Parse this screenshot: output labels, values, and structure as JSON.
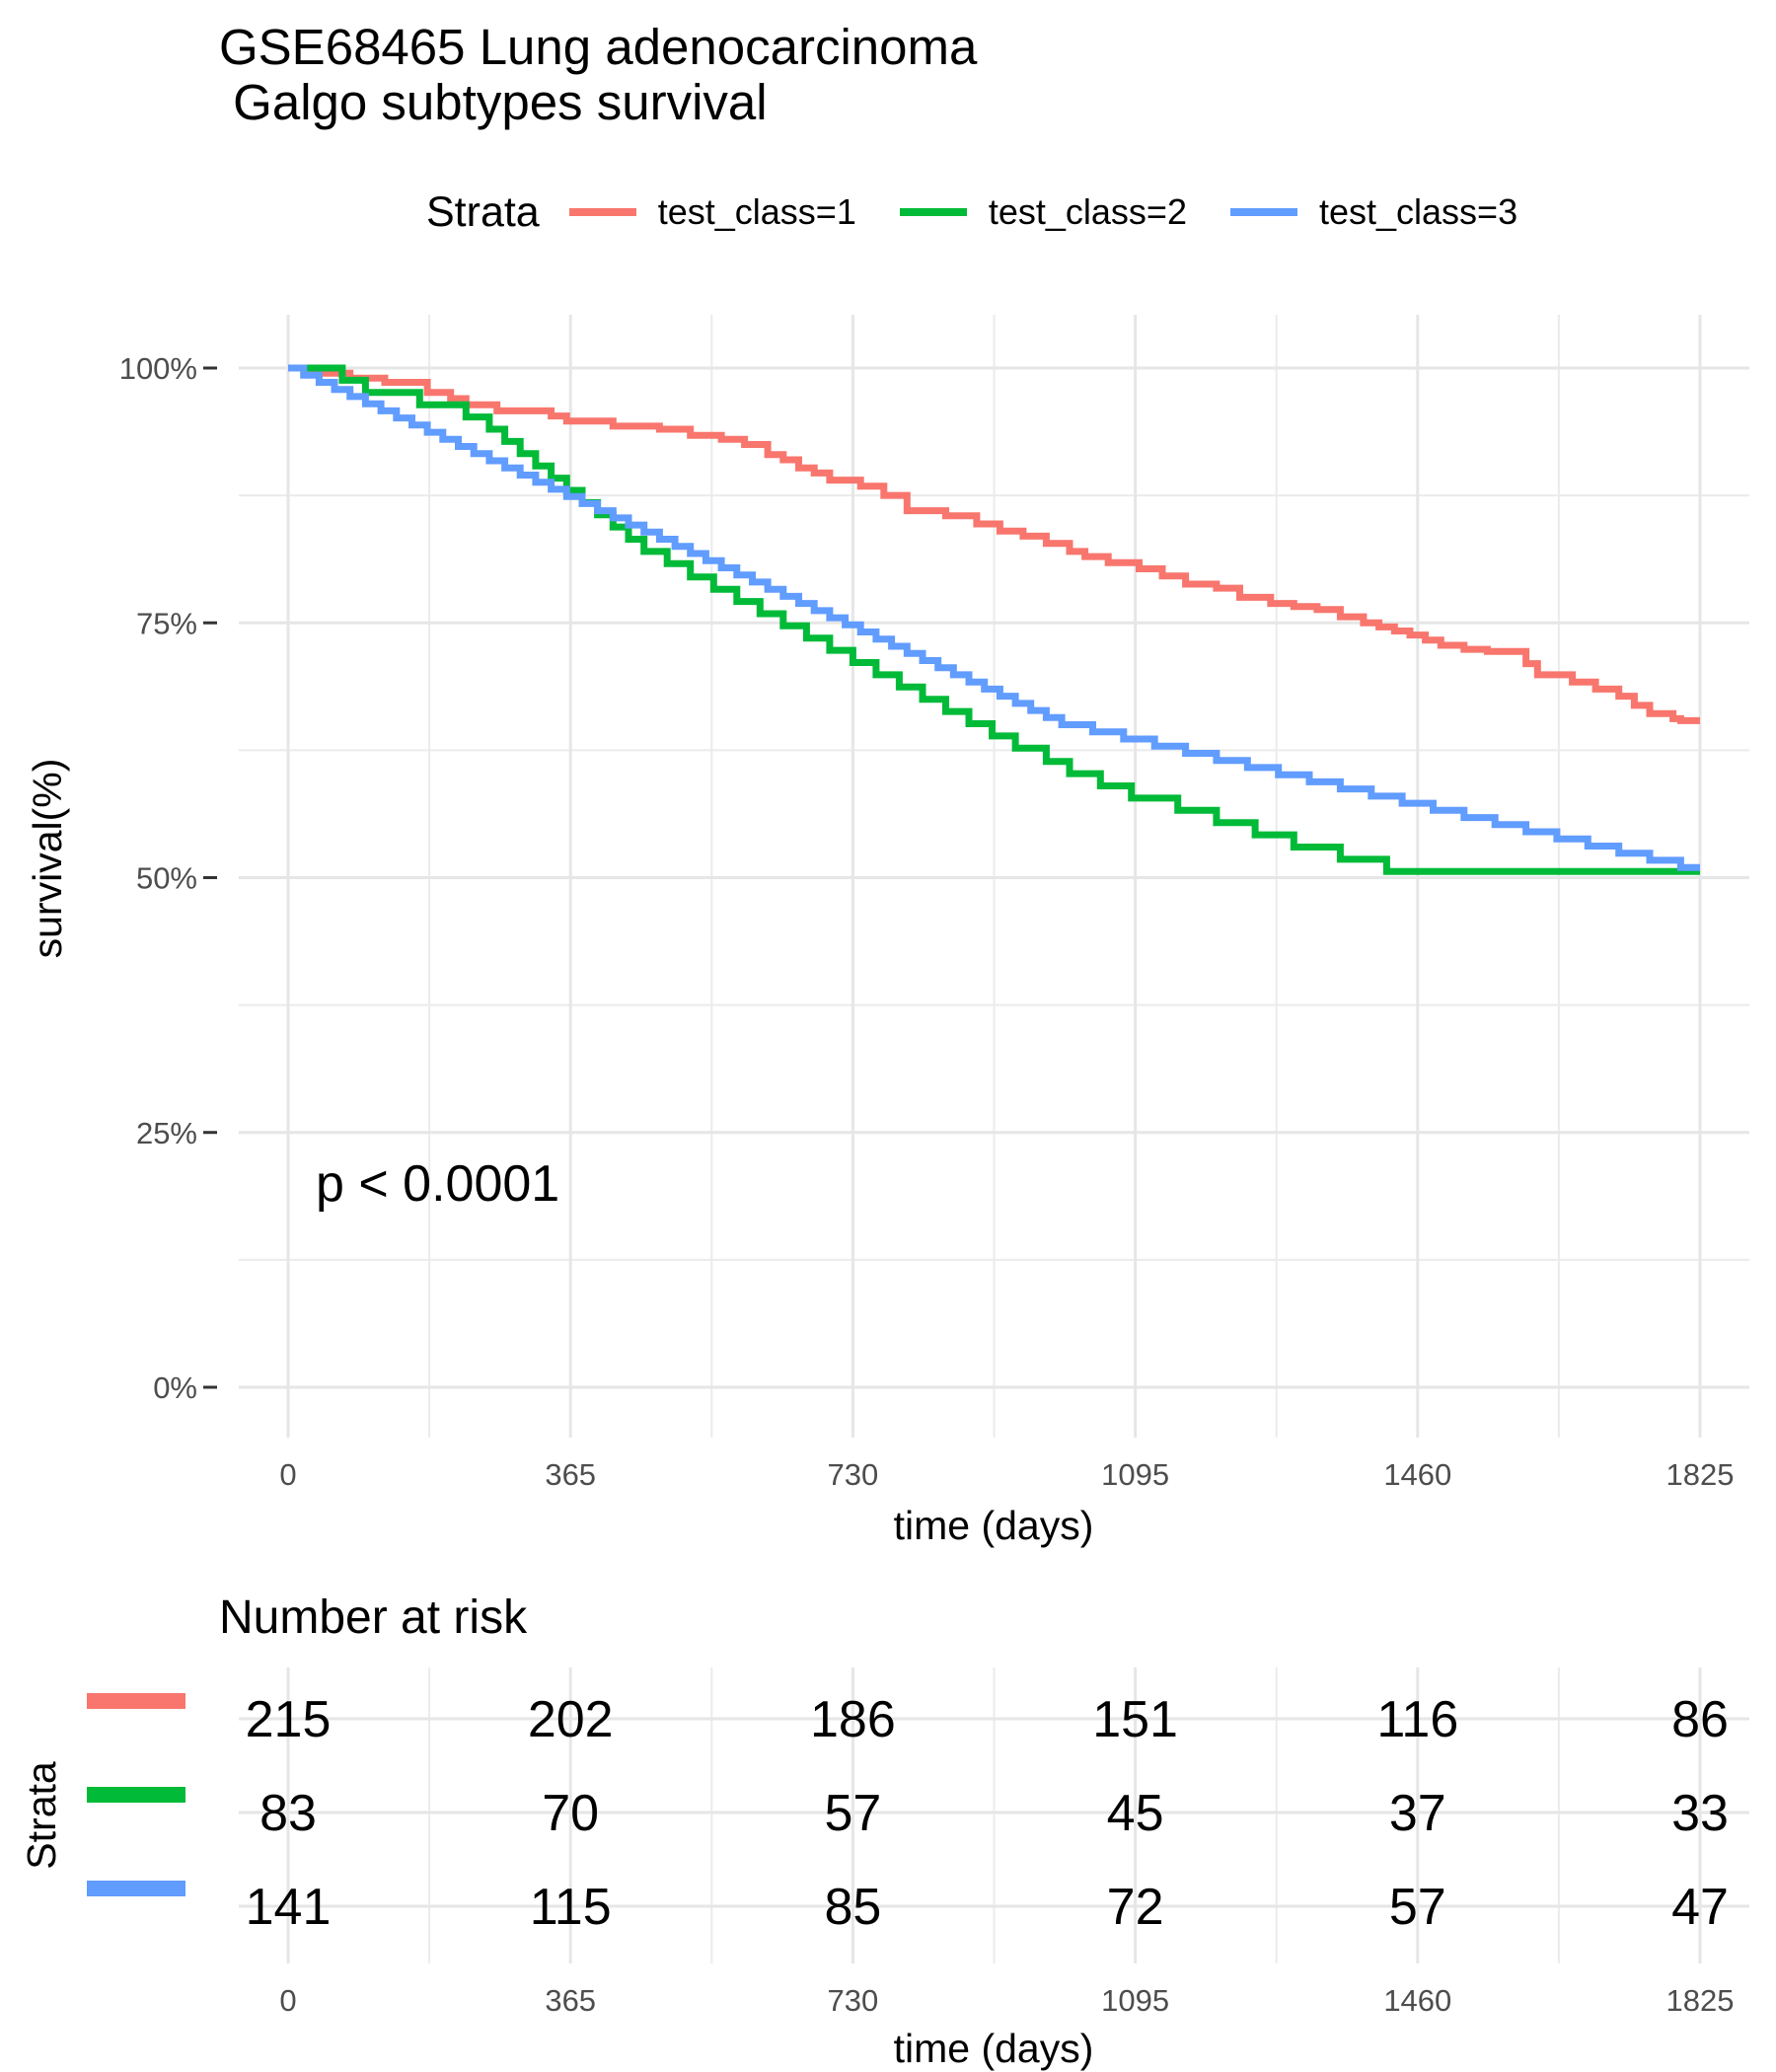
{
  "title": {
    "line1": "GSE68465 Lung adenocarcinoma",
    "line2": " Galgo subtypes survival"
  },
  "legend": {
    "title": "Strata",
    "items": [
      {
        "label": "test_class=1",
        "color": "#F8766D"
      },
      {
        "label": "test_class=2",
        "color": "#00BA38"
      },
      {
        "label": "test_class=3",
        "color": "#619CFF"
      }
    ]
  },
  "p_value_text": "p < 0.0001",
  "chart_data": {
    "type": "line",
    "step": "post",
    "xlabel": "time (days)",
    "ylabel": "survival(%)",
    "x_ticks": [
      0,
      365,
      730,
      1095,
      1460,
      1825
    ],
    "y_ticks": [
      0,
      25,
      50,
      75,
      100
    ],
    "y_tick_labels": [
      "0%",
      "25%",
      "50%",
      "75%",
      "100%"
    ],
    "xlim": [
      0,
      1825
    ],
    "ylim": [
      0,
      100
    ],
    "grid": true,
    "series": [
      {
        "name": "test_class=1",
        "color": "#F8766D",
        "points": [
          [
            0,
            100
          ],
          [
            30,
            99.5
          ],
          [
            80,
            99
          ],
          [
            125,
            98.6
          ],
          [
            180,
            97.6
          ],
          [
            210,
            97
          ],
          [
            230,
            96.4
          ],
          [
            270,
            95.8
          ],
          [
            340,
            95.3
          ],
          [
            360,
            94.8
          ],
          [
            420,
            94.3
          ],
          [
            480,
            94
          ],
          [
            520,
            93.4
          ],
          [
            560,
            93
          ],
          [
            590,
            92.5
          ],
          [
            620,
            91.5
          ],
          [
            640,
            91
          ],
          [
            660,
            90.2
          ],
          [
            680,
            89.7
          ],
          [
            700,
            89
          ],
          [
            740,
            88.4
          ],
          [
            770,
            87.5
          ],
          [
            800,
            86
          ],
          [
            850,
            85.5
          ],
          [
            890,
            84.7
          ],
          [
            920,
            84
          ],
          [
            950,
            83.5
          ],
          [
            980,
            82.8
          ],
          [
            1010,
            82
          ],
          [
            1030,
            81.5
          ],
          [
            1060,
            80.9
          ],
          [
            1100,
            80.3
          ],
          [
            1130,
            79.6
          ],
          [
            1160,
            78.8
          ],
          [
            1200,
            78.4
          ],
          [
            1230,
            77.5
          ],
          [
            1270,
            76.9
          ],
          [
            1300,
            76.6
          ],
          [
            1330,
            76.3
          ],
          [
            1360,
            75.6
          ],
          [
            1390,
            75
          ],
          [
            1410,
            74.6
          ],
          [
            1430,
            74.2
          ],
          [
            1450,
            73.8
          ],
          [
            1470,
            73.3
          ],
          [
            1490,
            72.8
          ],
          [
            1520,
            72.4
          ],
          [
            1550,
            72.2
          ],
          [
            1600,
            71
          ],
          [
            1615,
            69.9
          ],
          [
            1660,
            69.2
          ],
          [
            1690,
            68.5
          ],
          [
            1720,
            67.8
          ],
          [
            1740,
            66.9
          ],
          [
            1760,
            66.1
          ],
          [
            1790,
            65.6
          ],
          [
            1800,
            65.4
          ],
          [
            1825,
            65.4
          ]
        ]
      },
      {
        "name": "test_class=2",
        "color": "#00BA38",
        "points": [
          [
            0,
            100
          ],
          [
            70,
            98.8
          ],
          [
            100,
            97.6
          ],
          [
            170,
            96.4
          ],
          [
            230,
            95.2
          ],
          [
            260,
            94
          ],
          [
            280,
            92.8
          ],
          [
            300,
            91.6
          ],
          [
            320,
            90.4
          ],
          [
            340,
            89.2
          ],
          [
            360,
            88
          ],
          [
            380,
            86.8
          ],
          [
            400,
            85.6
          ],
          [
            420,
            84.4
          ],
          [
            440,
            83.2
          ],
          [
            460,
            82
          ],
          [
            490,
            80.8
          ],
          [
            520,
            79.5
          ],
          [
            550,
            78.3
          ],
          [
            580,
            77.1
          ],
          [
            610,
            75.9
          ],
          [
            640,
            74.7
          ],
          [
            670,
            73.5
          ],
          [
            700,
            72.3
          ],
          [
            730,
            71.1
          ],
          [
            760,
            69.9
          ],
          [
            790,
            68.7
          ],
          [
            820,
            67.5
          ],
          [
            850,
            66.3
          ],
          [
            880,
            65.1
          ],
          [
            910,
            63.9
          ],
          [
            940,
            62.7
          ],
          [
            980,
            61.4
          ],
          [
            1010,
            60.2
          ],
          [
            1050,
            59
          ],
          [
            1090,
            57.8
          ],
          [
            1150,
            56.6
          ],
          [
            1200,
            55.4
          ],
          [
            1250,
            54.2
          ],
          [
            1300,
            53
          ],
          [
            1360,
            51.8
          ],
          [
            1420,
            50.6
          ],
          [
            1825,
            50.6
          ]
        ]
      },
      {
        "name": "test_class=3",
        "color": "#619CFF",
        "points": [
          [
            0,
            100
          ],
          [
            20,
            99.3
          ],
          [
            40,
            98.6
          ],
          [
            60,
            97.9
          ],
          [
            80,
            97.2
          ],
          [
            100,
            96.5
          ],
          [
            120,
            95.8
          ],
          [
            140,
            95.1
          ],
          [
            160,
            94.4
          ],
          [
            180,
            93.7
          ],
          [
            200,
            93
          ],
          [
            220,
            92.3
          ],
          [
            240,
            91.6
          ],
          [
            260,
            90.9
          ],
          [
            280,
            90.2
          ],
          [
            300,
            89.5
          ],
          [
            320,
            88.8
          ],
          [
            340,
            88.1
          ],
          [
            360,
            87.4
          ],
          [
            380,
            86.7
          ],
          [
            400,
            86
          ],
          [
            420,
            85.3
          ],
          [
            440,
            84.6
          ],
          [
            460,
            83.9
          ],
          [
            480,
            83.2
          ],
          [
            500,
            82.5
          ],
          [
            520,
            81.8
          ],
          [
            540,
            81.1
          ],
          [
            560,
            80.4
          ],
          [
            580,
            79.7
          ],
          [
            600,
            79
          ],
          [
            620,
            78.3
          ],
          [
            640,
            77.6
          ],
          [
            660,
            76.9
          ],
          [
            680,
            76.2
          ],
          [
            700,
            75.5
          ],
          [
            720,
            74.8
          ],
          [
            740,
            74.1
          ],
          [
            760,
            73.4
          ],
          [
            780,
            72.7
          ],
          [
            800,
            72
          ],
          [
            820,
            71.3
          ],
          [
            840,
            70.6
          ],
          [
            860,
            69.9
          ],
          [
            880,
            69.2
          ],
          [
            900,
            68.5
          ],
          [
            920,
            67.8
          ],
          [
            940,
            67.1
          ],
          [
            960,
            66.4
          ],
          [
            980,
            65.7
          ],
          [
            1000,
            65
          ],
          [
            1040,
            64.3
          ],
          [
            1080,
            63.6
          ],
          [
            1120,
            62.9
          ],
          [
            1160,
            62.2
          ],
          [
            1200,
            61.5
          ],
          [
            1240,
            60.8
          ],
          [
            1280,
            60.1
          ],
          [
            1320,
            59.4
          ],
          [
            1360,
            58.7
          ],
          [
            1400,
            58
          ],
          [
            1440,
            57.3
          ],
          [
            1480,
            56.6
          ],
          [
            1520,
            55.9
          ],
          [
            1560,
            55.2
          ],
          [
            1600,
            54.5
          ],
          [
            1640,
            53.8
          ],
          [
            1680,
            53.1
          ],
          [
            1720,
            52.4
          ],
          [
            1760,
            51.7
          ],
          [
            1800,
            51
          ],
          [
            1825,
            51
          ]
        ]
      }
    ],
    "risk_table": {
      "title": "Number at risk",
      "ylabel": "Strata",
      "xlabel": "time (days)",
      "times": [
        0,
        365,
        730,
        1095,
        1460,
        1825
      ],
      "rows": [
        {
          "name": "test_class=1",
          "color": "#F8766D",
          "counts": [
            215,
            202,
            186,
            151,
            116,
            86
          ]
        },
        {
          "name": "test_class=2",
          "color": "#00BA38",
          "counts": [
            83,
            70,
            57,
            45,
            37,
            33
          ]
        },
        {
          "name": "test_class=3",
          "color": "#619CFF",
          "counts": [
            141,
            115,
            85,
            72,
            57,
            47
          ]
        }
      ]
    }
  }
}
